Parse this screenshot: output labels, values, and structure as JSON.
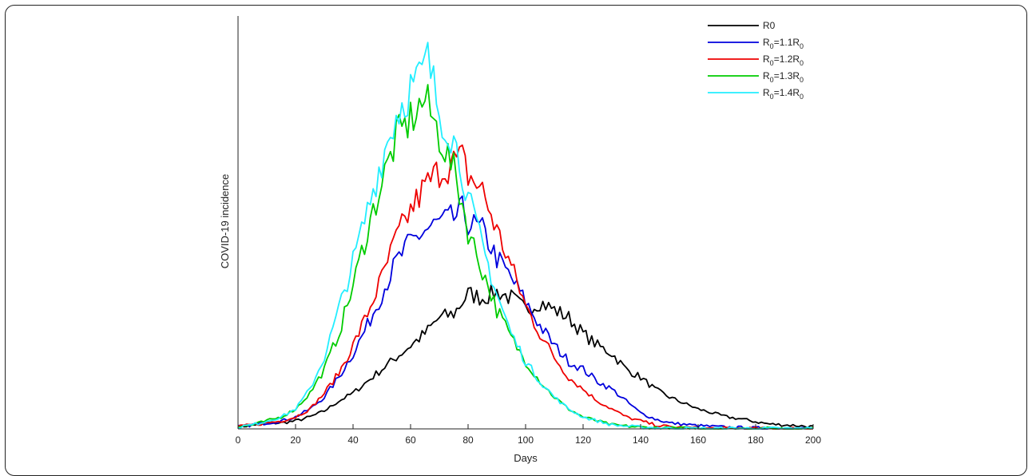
{
  "chart_data": {
    "type": "line",
    "title": "",
    "xlabel": "Days",
    "ylabel": "COVID-19 incidence",
    "xlim": [
      0,
      200
    ],
    "ylim": [
      0,
      100
    ],
    "x_ticks": [
      0,
      20,
      40,
      60,
      80,
      100,
      120,
      140,
      160,
      180,
      200
    ],
    "y_ticks_shown": false,
    "grid": false,
    "legend_position": "top-right",
    "series": [
      {
        "name": "R0",
        "color": "#000000",
        "x": [
          0,
          5,
          10,
          15,
          20,
          25,
          30,
          35,
          40,
          45,
          50,
          55,
          60,
          65,
          70,
          75,
          78,
          80,
          85,
          90,
          95,
          100,
          105,
          110,
          115,
          120,
          125,
          130,
          135,
          140,
          145,
          150,
          155,
          160,
          165,
          170,
          175,
          180,
          185,
          190,
          195,
          200
        ],
        "y": [
          0.5,
          1,
          1.5,
          1.5,
          2,
          3,
          4.5,
          7,
          9,
          12,
          15,
          18,
          21,
          24,
          28,
          29,
          32,
          34,
          33,
          34.5,
          33,
          30,
          32,
          30,
          28,
          24,
          21,
          19,
          15,
          13,
          10,
          8,
          6.5,
          5,
          4,
          3,
          2.5,
          1.8,
          1.2,
          1,
          0.8,
          0.5
        ]
      },
      {
        "name": "R_0=1.1R_0",
        "legend_main": "R",
        "legend_sub": "0",
        "legend_rest": "=1.1R",
        "legend_sub2": "0",
        "color": "#0000dd",
        "x": [
          0,
          5,
          10,
          15,
          20,
          25,
          30,
          35,
          40,
          45,
          50,
          55,
          60,
          65,
          70,
          75,
          78,
          80,
          85,
          90,
          95,
          100,
          105,
          110,
          115,
          120,
          125,
          130,
          135,
          140,
          145,
          150,
          160,
          170,
          180,
          190,
          200
        ],
        "y": [
          0.5,
          1,
          1.5,
          2,
          3,
          5,
          8,
          13,
          19,
          26,
          34,
          42,
          47,
          50,
          52,
          53,
          55,
          52,
          50,
          43,
          38,
          32,
          26,
          21,
          17,
          15,
          12,
          10,
          7,
          4,
          2.5,
          1.5,
          0.8,
          0.4,
          0.2,
          0.1,
          0.1
        ]
      },
      {
        "name": "R_0=1.2R_0",
        "legend_main": "R",
        "legend_sub": "0",
        "legend_rest": "=1.2R",
        "legend_sub2": "0",
        "color": "#ee0000",
        "x": [
          0,
          5,
          10,
          15,
          20,
          25,
          30,
          35,
          40,
          45,
          50,
          55,
          60,
          65,
          70,
          75,
          78,
          80,
          85,
          90,
          95,
          100,
          105,
          110,
          115,
          120,
          125,
          130,
          135,
          140,
          145,
          150,
          160,
          170,
          180,
          200
        ],
        "y": [
          0.5,
          1,
          1.5,
          2,
          3,
          5,
          9,
          14,
          21,
          29,
          38,
          48,
          55,
          61,
          65,
          67,
          68,
          64,
          60,
          50,
          41,
          31,
          24,
          18,
          13,
          10,
          7,
          5,
          3,
          2,
          1,
          0.5,
          0.2,
          0.1,
          0.1,
          0.1
        ]
      },
      {
        "name": "R_0=1.3R_0",
        "legend_main": "R",
        "legend_sub": "0",
        "legend_rest": "=1.3R",
        "legend_sub2": "0",
        "color": "#00cc00",
        "x": [
          0,
          5,
          10,
          15,
          20,
          25,
          30,
          35,
          40,
          45,
          50,
          55,
          60,
          65,
          70,
          75,
          78,
          80,
          85,
          90,
          95,
          100,
          105,
          110,
          115,
          120,
          125,
          130,
          140,
          150,
          160,
          180,
          200
        ],
        "y": [
          0.5,
          1,
          2,
          3,
          5,
          9,
          15,
          24,
          36,
          50,
          62,
          73,
          78,
          83,
          74,
          65,
          57,
          50,
          40,
          30,
          23,
          17,
          12,
          8,
          5,
          3,
          2,
          1,
          0.4,
          0.2,
          0.1,
          0.1,
          0.1
        ]
      },
      {
        "name": "R_0=1.4R_0",
        "legend_main": "R",
        "legend_sub": "0",
        "legend_rest": "=1.4R",
        "legend_sub2": "0",
        "color": "#22eeff",
        "x": [
          0,
          5,
          10,
          15,
          20,
          25,
          30,
          35,
          40,
          45,
          50,
          55,
          60,
          63,
          66,
          70,
          75,
          78,
          80,
          85,
          90,
          95,
          100,
          105,
          110,
          115,
          120,
          125,
          130,
          140,
          150,
          160,
          180,
          200
        ],
        "y": [
          0.5,
          1,
          2,
          3,
          5,
          10,
          18,
          30,
          42,
          55,
          68,
          79,
          86,
          88,
          93,
          80,
          73,
          65,
          58,
          46,
          34,
          24,
          17,
          12,
          8,
          5,
          3,
          2,
          1,
          0.4,
          0.2,
          0.1,
          0.1,
          0.1
        ]
      }
    ]
  }
}
